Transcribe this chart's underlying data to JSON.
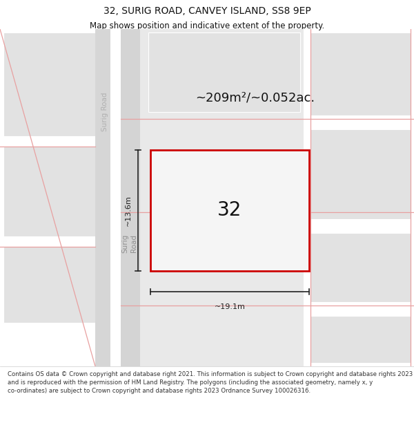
{
  "title": "32, SURIG ROAD, CANVEY ISLAND, SS8 9EP",
  "subtitle": "Map shows position and indicative extent of the property.",
  "area_text": "~209m²/~0.052ac.",
  "house_number": "32",
  "width_label": "~19.1m",
  "height_label": "~13.6m",
  "footer_text": "Contains OS data © Crown copyright and database right 2021. This information is subject to Crown copyright and database rights 2023 and is reproduced with the permission of HM Land Registry. The polygons (including the associated geometry, namely x, y co-ordinates) are subject to Crown copyright and database rights 2023 Ordnance Survey 100026316.",
  "map_bg": "#efefef",
  "block_face": "#e2e2e2",
  "block_edge": "#ffffff",
  "road_face": "#d6d6d6",
  "plot_face": "#f2f2f2",
  "pink": "#e8a0a0",
  "red": "#cc0000",
  "dim_color": "#222222",
  "road_text": "#b0b0b0",
  "road_text2": "#909090",
  "text_color": "#111111",
  "footer_color": "#333333",
  "title_fontsize": 10,
  "subtitle_fontsize": 8.5,
  "area_fontsize": 13,
  "num_fontsize": 20,
  "dim_fontsize": 8,
  "footer_fontsize": 6.2
}
